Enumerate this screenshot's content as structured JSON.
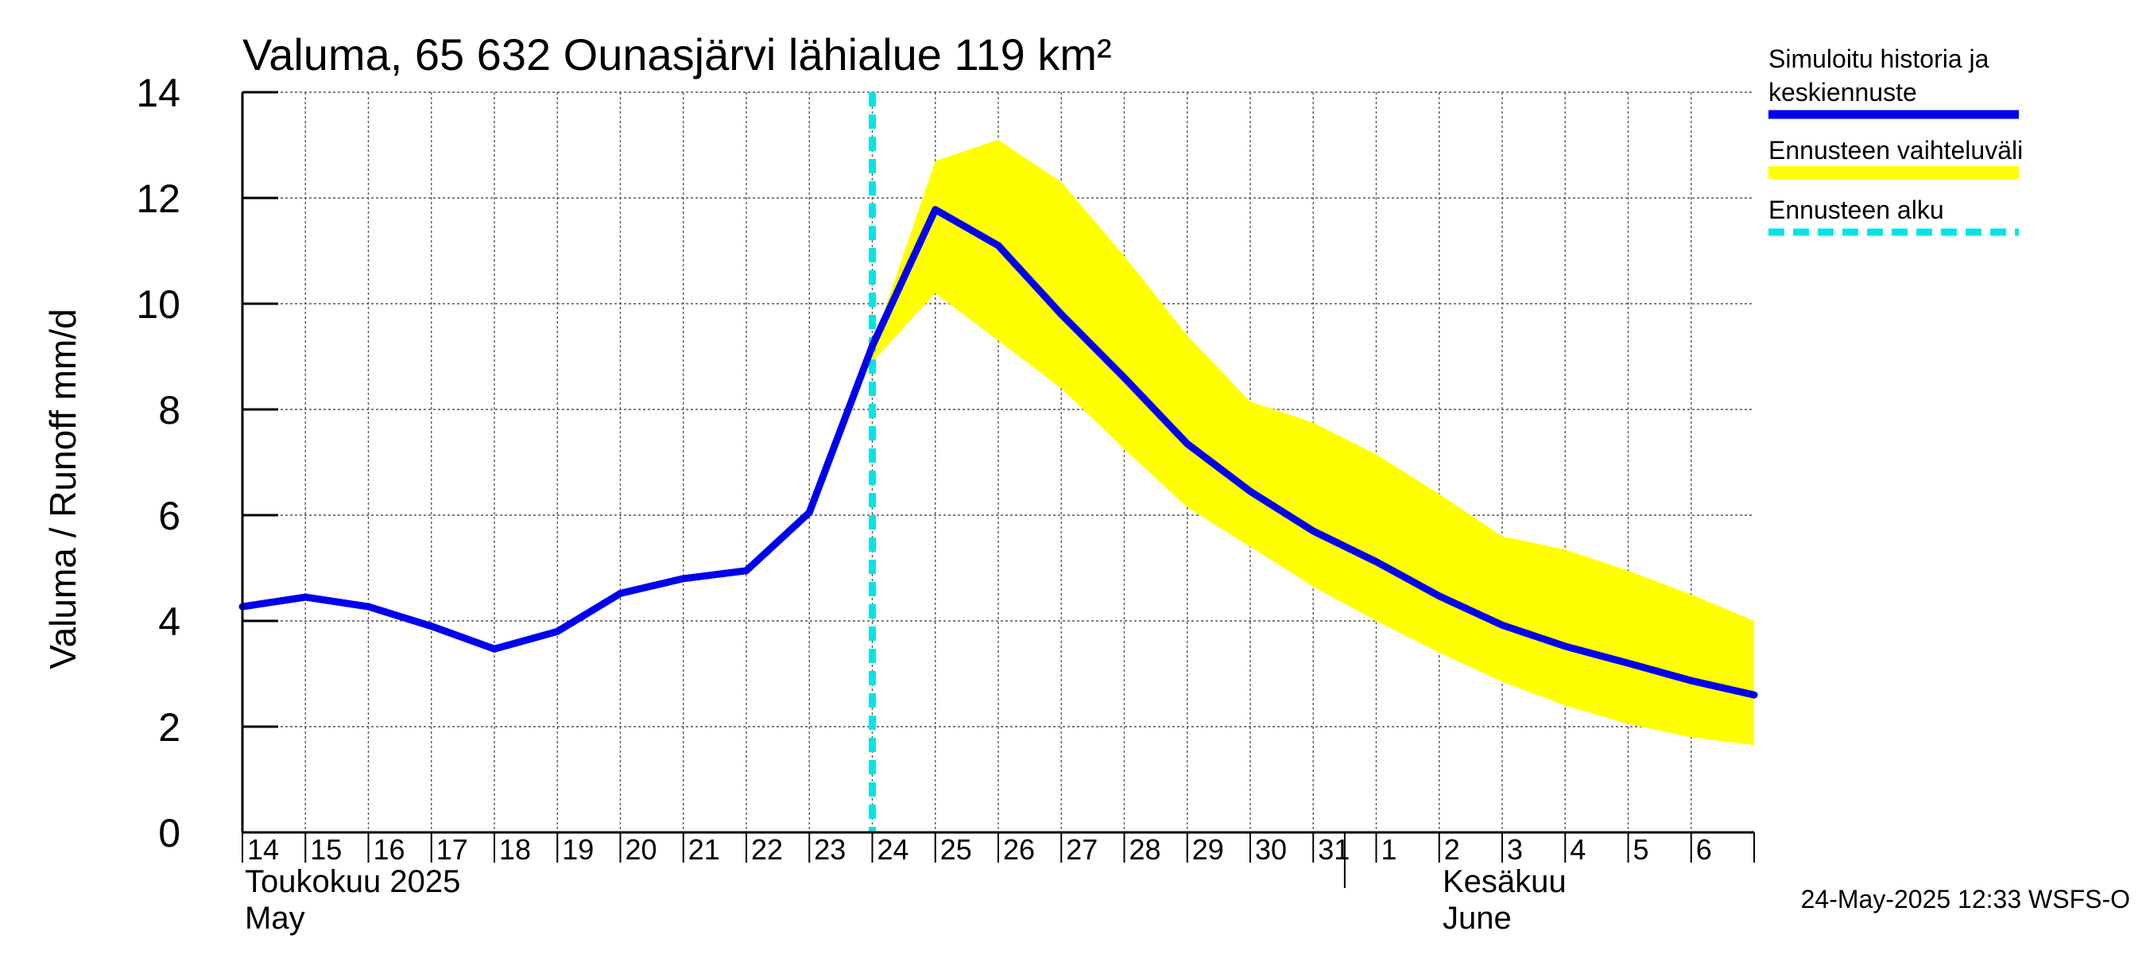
{
  "chart_data": {
    "type": "line",
    "title": "Valuma, 65 632 Ounasjärvi lähialue 119 km²",
    "ylabel": "Valuma / Runoff    mm/d",
    "ylim": [
      0,
      14
    ],
    "yticks": [
      0,
      2,
      4,
      6,
      8,
      10,
      12,
      14
    ],
    "x_day_labels": [
      "14",
      "15",
      "16",
      "17",
      "18",
      "19",
      "20",
      "21",
      "22",
      "23",
      "24",
      "25",
      "26",
      "27",
      "28",
      "29",
      "30",
      "31",
      "1",
      "2",
      "3",
      "4",
      "5",
      "6"
    ],
    "month_labels": {
      "may_fi": "Toukokuu  2025",
      "may_en": "May",
      "june_fi": "Kesäkuu",
      "june_en": "June"
    },
    "forecast_start_index": 10.0,
    "series": [
      {
        "name": "Simuloitu historia ja keskiennuste",
        "role": "mean",
        "color": "#0000ee",
        "values": [
          4.27,
          4.45,
          4.27,
          3.9,
          3.47,
          3.8,
          4.52,
          4.8,
          4.95,
          6.05,
          9.2,
          11.78,
          11.1,
          9.8,
          8.6,
          7.35,
          6.45,
          5.7,
          5.12,
          4.47,
          3.92,
          3.52,
          3.2,
          2.87,
          2.6
        ],
        "x_index": [
          0,
          1,
          2,
          3,
          4,
          5,
          6,
          7,
          8,
          9,
          10,
          11,
          12,
          13,
          14,
          15,
          16,
          17,
          18,
          19,
          20,
          21,
          22,
          23,
          24
        ]
      },
      {
        "name": "Ennusteen vaihteluväli",
        "role": "band",
        "color": "#ffff00",
        "x_index": [
          10,
          11,
          12,
          13,
          14,
          15,
          16,
          17,
          18,
          19,
          20,
          21,
          22,
          23,
          24
        ],
        "upper": [
          9.2,
          12.7,
          13.1,
          12.3,
          10.9,
          9.4,
          8.15,
          7.75,
          7.15,
          6.4,
          5.6,
          5.35,
          4.95,
          4.5,
          4.0
        ],
        "lower": [
          8.9,
          10.2,
          9.3,
          8.4,
          7.25,
          6.15,
          5.4,
          4.65,
          4.0,
          3.4,
          2.85,
          2.4,
          2.05,
          1.8,
          1.65
        ]
      }
    ],
    "legend": [
      {
        "label_line1": "Simuloitu historia ja",
        "label_line2": "keskiennuste",
        "style": "solid",
        "color": "#0000ee"
      },
      {
        "label_line1": "Ennusteen vaihteluväli",
        "label_line2": "",
        "style": "band",
        "color": "#ffff00"
      },
      {
        "label_line1": "Ennusteen alku",
        "label_line2": "",
        "style": "dashed",
        "color": "#00e5e5"
      }
    ],
    "legend_position": "right",
    "grid": true
  },
  "timestamp": "24-May-2025 12:33 WSFS-O"
}
